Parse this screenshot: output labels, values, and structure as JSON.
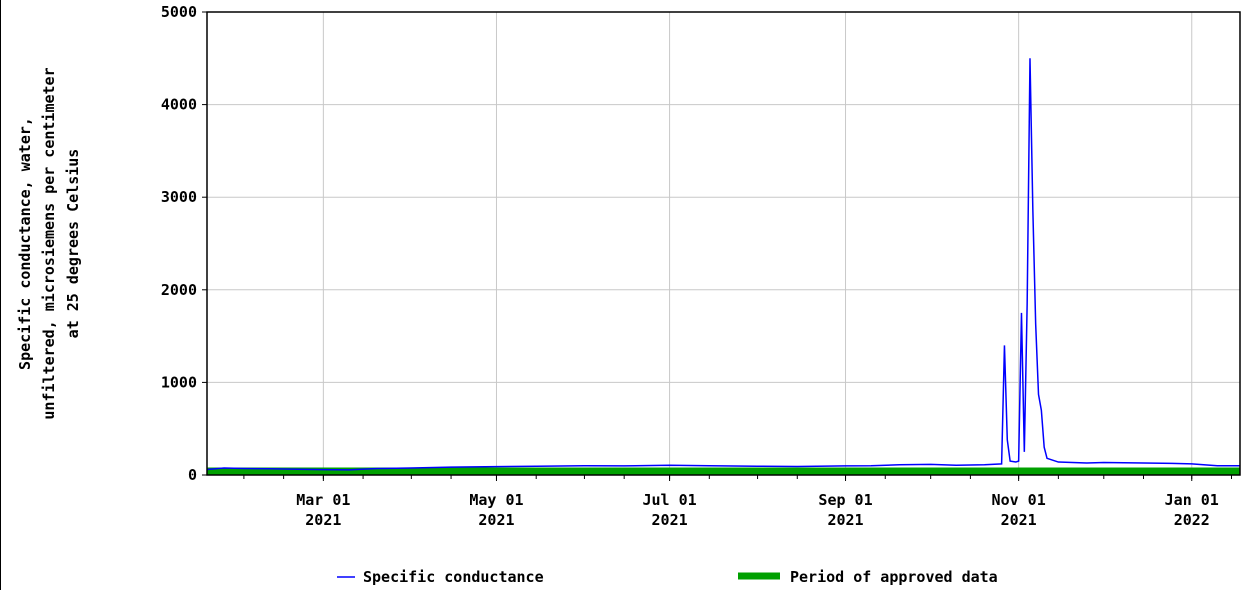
{
  "chart_data": {
    "type": "line",
    "ylabel": [
      "Specific conductance, water,",
      "unfiltered, microsiemens per centimeter",
      "at 25 degrees Celsius"
    ],
    "xlim": [
      "2021-01-19",
      "2022-01-18"
    ],
    "xticks": [
      {
        "value": "2021-03-01",
        "label": [
          "Mar 01",
          "2021"
        ]
      },
      {
        "value": "2021-05-01",
        "label": [
          "May 01",
          "2021"
        ]
      },
      {
        "value": "2021-07-01",
        "label": [
          "Jul 01",
          "2021"
        ]
      },
      {
        "value": "2021-09-01",
        "label": [
          "Sep 01",
          "2021"
        ]
      },
      {
        "value": "2021-11-01",
        "label": [
          "Nov 01",
          "2021"
        ]
      },
      {
        "value": "2022-01-01",
        "label": [
          "Jan 01",
          "2022"
        ]
      }
    ],
    "ylim": [
      0,
      5000
    ],
    "yticks": [
      0,
      1000,
      2000,
      3000,
      4000,
      5000
    ],
    "grid": true,
    "series": [
      {
        "name": "Specific conductance",
        "color": "#0000ff",
        "x": [
          "2021-01-19",
          "2021-01-25",
          "2021-02-01",
          "2021-02-10",
          "2021-02-20",
          "2021-03-01",
          "2021-03-10",
          "2021-03-20",
          "2021-04-01",
          "2021-04-15",
          "2021-05-01",
          "2021-05-15",
          "2021-06-01",
          "2021-06-15",
          "2021-07-01",
          "2021-07-15",
          "2021-08-01",
          "2021-08-15",
          "2021-09-01",
          "2021-09-10",
          "2021-09-20",
          "2021-10-01",
          "2021-10-10",
          "2021-10-20",
          "2021-10-26",
          "2021-10-27",
          "2021-10-28",
          "2021-10-29",
          "2021-10-31",
          "2021-11-01",
          "2021-11-02",
          "2021-11-03",
          "2021-11-04",
          "2021-11-05",
          "2021-11-06",
          "2021-11-07",
          "2021-11-08",
          "2021-11-09",
          "2021-11-10",
          "2021-11-11",
          "2021-11-15",
          "2021-11-25",
          "2021-12-01",
          "2021-12-15",
          "2021-12-25",
          "2022-01-01",
          "2022-01-10",
          "2022-01-18"
        ],
        "values": [
          60,
          75,
          70,
          68,
          62,
          58,
          55,
          70,
          75,
          85,
          90,
          95,
          100,
          98,
          105,
          100,
          95,
          92,
          98,
          100,
          110,
          115,
          105,
          110,
          120,
          1400,
          380,
          150,
          140,
          150,
          1750,
          250,
          1850,
          4500,
          2870,
          1630,
          870,
          700,
          300,
          180,
          140,
          130,
          135,
          130,
          125,
          120,
          100,
          100
        ]
      }
    ],
    "approved": {
      "name": "Period of approved data",
      "color": "#00a000",
      "start": "2021-01-19",
      "end": "2022-01-18"
    }
  }
}
